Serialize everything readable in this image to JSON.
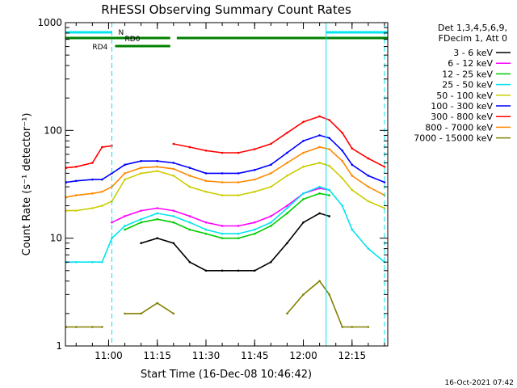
{
  "chart_data": {
    "type": "line",
    "title": "RHESSI Observing Summary Count Rates",
    "xlabel": "Start Time (16-Dec-08 10:46:42)",
    "ylabel": "Count Rate (s⁻¹ detector⁻¹)",
    "yscale": "log",
    "ylim": [
      1,
      1000
    ],
    "xlim": [
      "10:46:42",
      "12:26:00"
    ],
    "x_ticks": [
      "11:00",
      "11:15",
      "11:30",
      "11:45",
      "12:00",
      "12:15"
    ],
    "y_ticks": [
      "1",
      "10",
      "100",
      "1000"
    ],
    "legend_header": [
      "Det 1,3,4,5,6,9,",
      "FDecim 1, Att 0"
    ],
    "legend_position": "right",
    "footer_date": "16-Oct-2021 07:42",
    "flag_labels": [
      "N",
      "RD0",
      "RD4"
    ],
    "flag_colors": {
      "night": "#00e5ee",
      "rd": "#008000"
    },
    "vertical_markers": [
      "11:01",
      "12:07",
      "12:25"
    ],
    "x": [
      "10:47",
      "10:50",
      "10:55",
      "10:58",
      "11:01",
      "11:05",
      "11:10",
      "11:15",
      "11:20",
      "11:25",
      "11:30",
      "11:35",
      "11:40",
      "11:45",
      "11:50",
      "11:55",
      "12:00",
      "12:05",
      "12:08",
      "12:12",
      "12:15",
      "12:20",
      "12:25"
    ],
    "series": [
      {
        "name": "3 - 6 keV",
        "color": "#000000",
        "values": [
          null,
          null,
          null,
          null,
          null,
          null,
          9,
          10,
          9,
          6,
          5,
          5,
          5,
          5,
          6,
          9,
          14,
          17,
          16,
          null,
          null,
          null,
          null
        ]
      },
      {
        "name": "6 - 12 keV",
        "color": "#ff00ff",
        "values": [
          null,
          null,
          null,
          null,
          14,
          16,
          18,
          19,
          18,
          16,
          14,
          13,
          13,
          14,
          16,
          20,
          26,
          29,
          28,
          null,
          null,
          null,
          null
        ]
      },
      {
        "name": "12 - 25 keV",
        "color": "#00cc00",
        "values": [
          null,
          null,
          null,
          null,
          null,
          12,
          14,
          15,
          14,
          12,
          11,
          10,
          10,
          11,
          13,
          17,
          23,
          26,
          25,
          null,
          null,
          null,
          null
        ]
      },
      {
        "name": "25 - 50 keV",
        "color": "#00e5ee",
        "values": [
          6,
          6,
          6,
          6,
          10,
          13,
          15,
          17,
          16,
          14,
          12,
          11,
          11,
          12,
          14,
          19,
          26,
          30,
          28,
          20,
          12,
          8,
          6
        ]
      },
      {
        "name": "50 - 100 keV",
        "color": "#cccc00",
        "values": [
          18,
          18,
          19,
          20,
          22,
          35,
          40,
          42,
          38,
          30,
          27,
          25,
          25,
          27,
          30,
          38,
          46,
          50,
          47,
          36,
          28,
          22,
          19
        ]
      },
      {
        "name": "100 - 300 keV",
        "color": "#0000ff",
        "values": [
          33,
          34,
          35,
          35,
          40,
          48,
          52,
          52,
          50,
          45,
          40,
          40,
          40,
          43,
          48,
          62,
          80,
          90,
          85,
          65,
          48,
          38,
          33
        ]
      },
      {
        "name": "300 - 800 keV",
        "color": "#ff0000",
        "values": [
          45,
          46,
          50,
          70,
          72,
          null,
          null,
          null,
          75,
          70,
          65,
          62,
          62,
          67,
          75,
          95,
          120,
          135,
          125,
          95,
          68,
          55,
          46
        ]
      },
      {
        "name": "800 - 7000 keV",
        "color": "#ff8800",
        "values": [
          24,
          25,
          26,
          27,
          30,
          40,
          45,
          46,
          44,
          38,
          34,
          33,
          33,
          35,
          40,
          50,
          62,
          70,
          67,
          52,
          38,
          30,
          25
        ]
      },
      {
        "name": "7000 - 15000 keV",
        "color": "#808000",
        "values": [
          1.5,
          1.5,
          1.5,
          1.5,
          null,
          2,
          2,
          2.5,
          2,
          null,
          null,
          null,
          null,
          null,
          null,
          2,
          3,
          4,
          3,
          1.5,
          1.5,
          1.5,
          null
        ]
      }
    ]
  }
}
